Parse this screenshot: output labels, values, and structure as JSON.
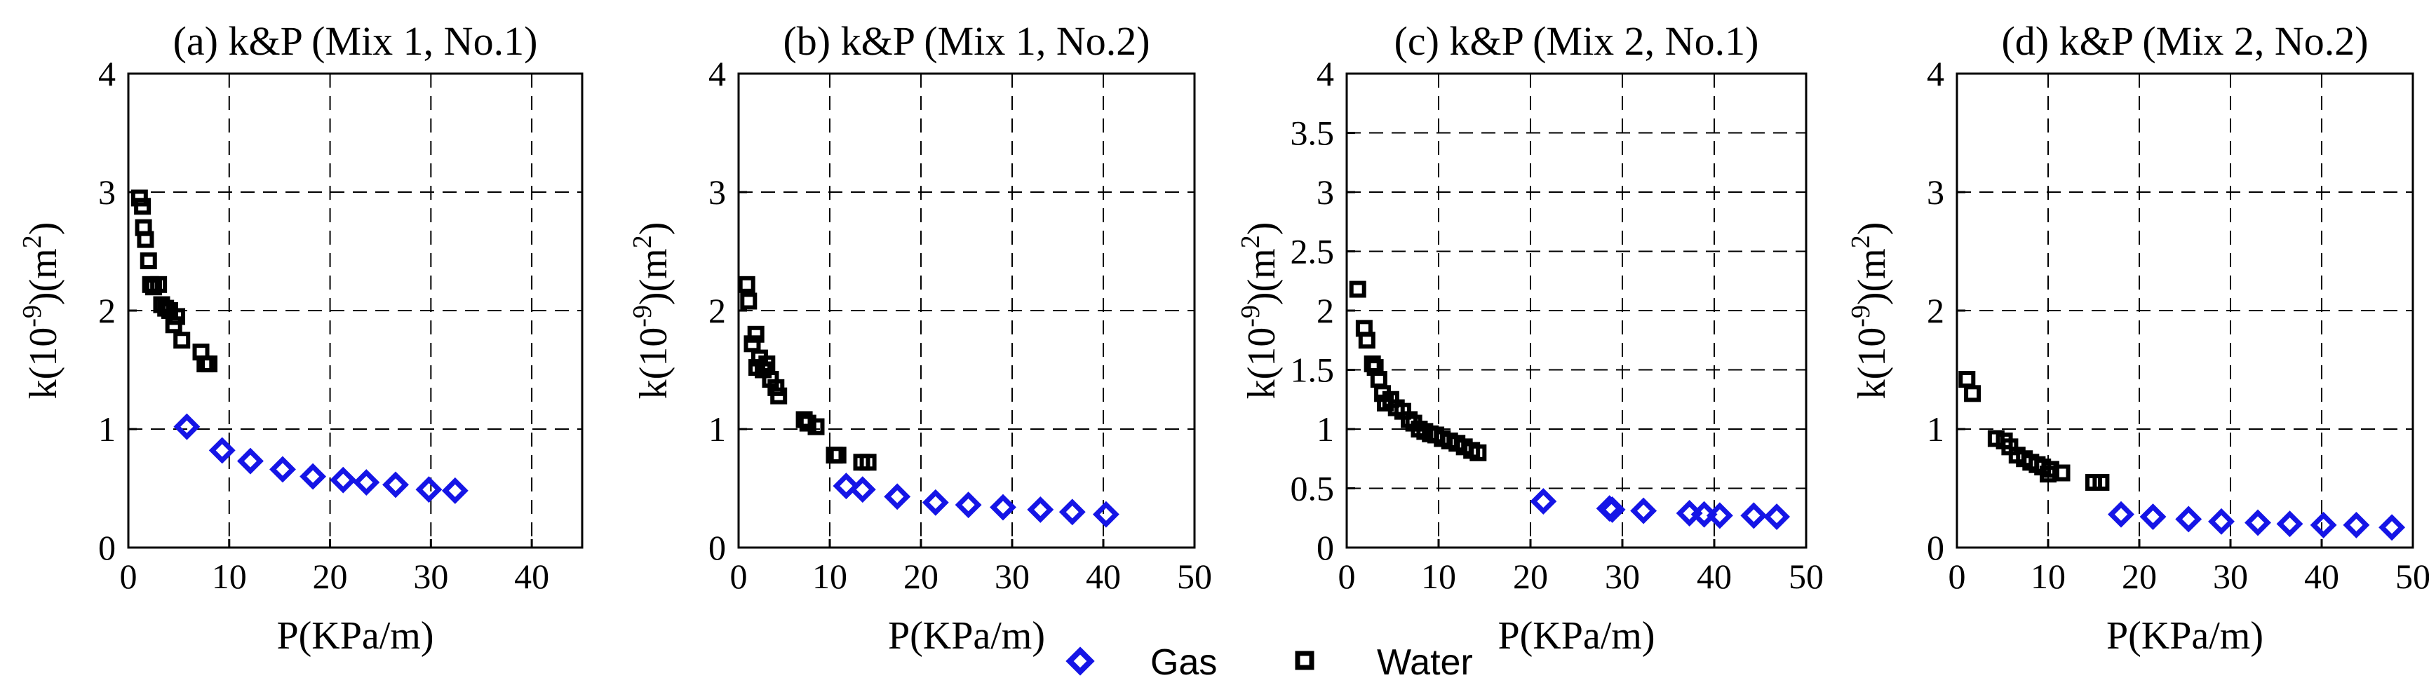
{
  "figure": {
    "legend": [
      {
        "label": "Gas",
        "marker": "diamond",
        "color": "#1515e6"
      },
      {
        "label": "Water",
        "marker": "square",
        "color": "#000000"
      }
    ]
  },
  "chart_data": [
    {
      "type": "scatter",
      "title": "(a) k&P (Mix 1, No.1)",
      "xlabel": "P(KPa/m)",
      "ylabel": "k(10^-9)(m^2)",
      "xlim": [
        0,
        45
      ],
      "ylim": [
        0,
        4
      ],
      "xticks": [
        0,
        10,
        20,
        30,
        40
      ],
      "yticks": [
        0,
        1,
        2,
        3,
        4
      ],
      "grid": true,
      "series": [
        {
          "name": "Water",
          "marker": "square",
          "color": "#000000",
          "x": [
            1.1,
            1.4,
            1.5,
            1.7,
            2.0,
            2.2,
            2.5,
            3.0,
            3.3,
            3.7,
            4.1,
            4.5,
            4.8,
            5.3,
            7.2,
            7.6,
            8.0
          ],
          "y": [
            2.95,
            2.88,
            2.7,
            2.6,
            2.42,
            2.22,
            2.2,
            2.22,
            2.05,
            2.02,
            2.0,
            1.88,
            1.95,
            1.75,
            1.65,
            1.55,
            1.55
          ]
        },
        {
          "name": "Gas",
          "marker": "diamond",
          "color": "#1515e6",
          "x": [
            5.8,
            9.3,
            12.1,
            15.3,
            18.3,
            21.3,
            23.6,
            26.5,
            29.8,
            32.4
          ],
          "y": [
            1.02,
            0.82,
            0.73,
            0.66,
            0.6,
            0.57,
            0.55,
            0.53,
            0.49,
            0.48
          ]
        }
      ]
    },
    {
      "type": "scatter",
      "title": "(b) k&P (Mix 1, No.2)",
      "xlabel": "P(KPa/m)",
      "ylabel": "k(10^-9)(m^2)",
      "xlim": [
        0,
        50
      ],
      "ylim": [
        0,
        4
      ],
      "xticks": [
        0,
        10,
        20,
        30,
        40,
        50
      ],
      "yticks": [
        0,
        1,
        2,
        3,
        4
      ],
      "grid": true,
      "series": [
        {
          "name": "Water",
          "marker": "square",
          "color": "#000000",
          "x": [
            0.9,
            1.1,
            1.5,
            1.9,
            2.0,
            2.3,
            2.7,
            3.1,
            3.5,
            4.1,
            4.4,
            7.2,
            7.6,
            8.5,
            10.5,
            10.9,
            13.5,
            14.2
          ],
          "y": [
            2.22,
            2.08,
            1.72,
            1.8,
            1.52,
            1.6,
            1.5,
            1.55,
            1.42,
            1.35,
            1.28,
            1.08,
            1.05,
            1.02,
            0.78,
            0.78,
            0.72,
            0.72
          ]
        },
        {
          "name": "Gas",
          "marker": "diamond",
          "color": "#1515e6",
          "x": [
            11.8,
            13.6,
            17.4,
            21.6,
            25.2,
            29.0,
            33.1,
            36.6,
            40.3
          ],
          "y": [
            0.52,
            0.49,
            0.43,
            0.38,
            0.36,
            0.34,
            0.32,
            0.3,
            0.28
          ]
        }
      ]
    },
    {
      "type": "scatter",
      "title": "(c) k&P (Mix 2, No.1)",
      "xlabel": "P(KPa/m)",
      "ylabel": "k(10^-9)(m^2)",
      "xlim": [
        0,
        50
      ],
      "ylim": [
        0,
        4
      ],
      "xticks": [
        0,
        10,
        20,
        30,
        40,
        50
      ],
      "yticks": [
        0,
        0.5,
        1,
        1.5,
        2,
        2.5,
        3,
        3.5,
        4
      ],
      "grid": true,
      "series": [
        {
          "name": "Water",
          "marker": "square",
          "color": "#000000",
          "x": [
            1.2,
            1.9,
            2.2,
            2.8,
            3.1,
            3.5,
            3.9,
            4.2,
            4.8,
            5.4,
            6.1,
            6.8,
            7.3,
            7.9,
            8.5,
            9.1,
            9.7,
            10.4,
            11.2,
            12.0,
            12.8,
            13.6,
            14.3
          ],
          "y": [
            2.18,
            1.85,
            1.75,
            1.55,
            1.52,
            1.42,
            1.3,
            1.22,
            1.25,
            1.18,
            1.15,
            1.08,
            1.05,
            1.0,
            0.98,
            0.96,
            0.95,
            0.92,
            0.9,
            0.88,
            0.85,
            0.82,
            0.8
          ]
        },
        {
          "name": "Gas",
          "marker": "diamond",
          "color": "#1515e6",
          "x": [
            21.4,
            28.6,
            28.9,
            32.3,
            37.3,
            38.9,
            40.6,
            44.3,
            46.8
          ],
          "y": [
            0.39,
            0.33,
            0.32,
            0.31,
            0.29,
            0.28,
            0.27,
            0.27,
            0.26
          ]
        }
      ]
    },
    {
      "type": "scatter",
      "title": "(d) k&P (Mix 2, No.2)",
      "xlabel": "P(KPa/m)",
      "ylabel": "k(10^-9)(m^2)",
      "xlim": [
        0,
        50
      ],
      "ylim": [
        0,
        4
      ],
      "xticks": [
        0,
        10,
        20,
        30,
        40,
        50
      ],
      "yticks": [
        0,
        1,
        2,
        3,
        4
      ],
      "grid": true,
      "series": [
        {
          "name": "Water",
          "marker": "square",
          "color": "#000000",
          "x": [
            1.1,
            1.7,
            4.3,
            5.2,
            5.8,
            6.6,
            7.4,
            8.1,
            8.8,
            9.4,
            10.0,
            10.3,
            11.5,
            15.0,
            15.8
          ],
          "y": [
            1.42,
            1.3,
            0.92,
            0.9,
            0.85,
            0.78,
            0.75,
            0.72,
            0.7,
            0.68,
            0.62,
            0.66,
            0.63,
            0.55,
            0.55
          ]
        },
        {
          "name": "Gas",
          "marker": "diamond",
          "color": "#1515e6",
          "x": [
            18.0,
            21.5,
            25.4,
            29.0,
            33.0,
            36.5,
            40.2,
            43.8,
            47.7
          ],
          "y": [
            0.28,
            0.26,
            0.24,
            0.22,
            0.21,
            0.2,
            0.19,
            0.19,
            0.17
          ]
        }
      ]
    }
  ]
}
